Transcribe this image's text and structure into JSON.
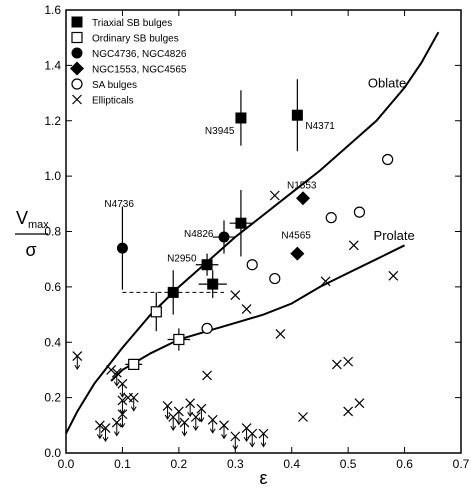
{
  "chart_data": {
    "type": "scatter",
    "xlabel": "ε",
    "ylabel": {
      "main": "V",
      "sub": "max",
      "denominator": "σ"
    },
    "xlim": [
      0,
      0.7
    ],
    "ylim": [
      0,
      1.6
    ],
    "xticks": [
      "0.0",
      "0.1",
      "0.2",
      "0.3",
      "0.4",
      "0.5",
      "0.6",
      "0.7"
    ],
    "yticks": [
      "0.0",
      "0.2",
      "0.4",
      "0.6",
      "0.8",
      "1.0",
      "1.2",
      "1.4",
      "1.6"
    ],
    "grid": false,
    "legend_position": "top-left",
    "legend": [
      {
        "marker": "filled-square",
        "label": "Triaxial SB bulges"
      },
      {
        "marker": "open-square",
        "label": "Ordinary SB bulges"
      },
      {
        "marker": "filled-circle",
        "label": "NGC4736, NGC4826"
      },
      {
        "marker": "filled-diamond",
        "label": "NGC1553, NGC4565"
      },
      {
        "marker": "open-circle",
        "label": "SA bulges"
      },
      {
        "marker": "cross",
        "label": "Ellipticals"
      }
    ],
    "series": [
      {
        "name": "Triaxial SB bulges",
        "marker": "filled-square",
        "points": [
          {
            "x": 0.31,
            "y": 1.21,
            "yerr": 0.1
          },
          {
            "x": 0.41,
            "y": 1.22,
            "yerr": 0.13
          },
          {
            "x": 0.31,
            "y": 0.83,
            "yerr": 0.12,
            "xerr": 0.02
          },
          {
            "x": 0.25,
            "y": 0.68,
            "yerr": 0.04,
            "xerr": 0.02
          },
          {
            "x": 0.26,
            "y": 0.61,
            "yerr": 0.05,
            "xerr": 0.025
          },
          {
            "x": 0.19,
            "y": 0.58,
            "yerr": 0.08,
            "xerr_minus": 0.09,
            "xerr_plus": 0.09,
            "dashed": true
          }
        ]
      },
      {
        "name": "Ordinary SB bulges",
        "marker": "open-square",
        "points": [
          {
            "x": 0.16,
            "y": 0.51,
            "yerr": 0.07
          },
          {
            "x": 0.2,
            "y": 0.41,
            "yerr": 0.04,
            "xerr": 0.02
          },
          {
            "x": 0.12,
            "y": 0.32,
            "yerr": 0.02,
            "xerr": 0.015
          }
        ]
      },
      {
        "name": "NGC4736, NGC4826",
        "marker": "filled-circle",
        "points": [
          {
            "x": 0.1,
            "y": 0.74,
            "yerr": 0.15
          },
          {
            "x": 0.28,
            "y": 0.78,
            "yerr": 0.06,
            "xerr": 0.02
          }
        ]
      },
      {
        "name": "NGC1553, NGC4565",
        "marker": "filled-diamond",
        "points": [
          {
            "x": 0.42,
            "y": 0.92
          },
          {
            "x": 0.41,
            "y": 0.72
          }
        ]
      },
      {
        "name": "SA bulges",
        "marker": "open-circle",
        "points": [
          {
            "x": 0.57,
            "y": 1.06
          },
          {
            "x": 0.52,
            "y": 0.87
          },
          {
            "x": 0.47,
            "y": 0.85
          },
          {
            "x": 0.33,
            "y": 0.68
          },
          {
            "x": 0.37,
            "y": 0.63
          },
          {
            "x": 0.25,
            "y": 0.45
          }
        ]
      },
      {
        "name": "Ellipticals",
        "marker": "cross",
        "points": [
          {
            "x": 0.37,
            "y": 0.93
          },
          {
            "x": 0.51,
            "y": 0.75
          },
          {
            "x": 0.46,
            "y": 0.62
          },
          {
            "x": 0.58,
            "y": 0.64
          },
          {
            "x": 0.3,
            "y": 0.57
          },
          {
            "x": 0.32,
            "y": 0.52
          },
          {
            "x": 0.38,
            "y": 0.43
          },
          {
            "x": 0.48,
            "y": 0.32
          },
          {
            "x": 0.5,
            "y": 0.33
          },
          {
            "x": 0.25,
            "y": 0.28
          },
          {
            "x": 0.08,
            "y": 0.3
          },
          {
            "x": 0.11,
            "y": 0.2
          },
          {
            "x": 0.52,
            "y": 0.18
          },
          {
            "x": 0.5,
            "y": 0.15
          },
          {
            "x": 0.42,
            "y": 0.13
          },
          {
            "x": 0.02,
            "y": 0.35,
            "upper_limit": true
          },
          {
            "x": 0.09,
            "y": 0.29,
            "upper_limit": true
          },
          {
            "x": 0.1,
            "y": 0.25,
            "upper_limit": true
          },
          {
            "x": 0.1,
            "y": 0.19,
            "upper_limit": true
          },
          {
            "x": 0.12,
            "y": 0.2,
            "upper_limit": true
          },
          {
            "x": 0.1,
            "y": 0.14,
            "upper_limit": true
          },
          {
            "x": 0.09,
            "y": 0.11,
            "upper_limit": true
          },
          {
            "x": 0.06,
            "y": 0.1,
            "upper_limit": true
          },
          {
            "x": 0.07,
            "y": 0.09,
            "upper_limit": true
          },
          {
            "x": 0.18,
            "y": 0.17,
            "upper_limit": true
          },
          {
            "x": 0.19,
            "y": 0.13,
            "upper_limit": true
          },
          {
            "x": 0.2,
            "y": 0.15,
            "upper_limit": true
          },
          {
            "x": 0.21,
            "y": 0.11,
            "upper_limit": true
          },
          {
            "x": 0.22,
            "y": 0.18,
            "upper_limit": true
          },
          {
            "x": 0.23,
            "y": 0.13,
            "upper_limit": true
          },
          {
            "x": 0.24,
            "y": 0.16,
            "upper_limit": true
          },
          {
            "x": 0.26,
            "y": 0.12,
            "upper_limit": true
          },
          {
            "x": 0.28,
            "y": 0.1,
            "upper_limit": true
          },
          {
            "x": 0.3,
            "y": 0.06,
            "upper_limit": true
          },
          {
            "x": 0.32,
            "y": 0.09,
            "upper_limit": true
          },
          {
            "x": 0.33,
            "y": 0.07,
            "upper_limit": true
          },
          {
            "x": 0.35,
            "y": 0.07,
            "upper_limit": true
          }
        ]
      }
    ],
    "curves": [
      {
        "name": "Oblate",
        "x": [
          0.0,
          0.02,
          0.05,
          0.1,
          0.15,
          0.2,
          0.25,
          0.3,
          0.35,
          0.4,
          0.45,
          0.5,
          0.55,
          0.6,
          0.63,
          0.66
        ],
        "y": [
          0.07,
          0.15,
          0.25,
          0.38,
          0.5,
          0.6,
          0.69,
          0.78,
          0.86,
          0.94,
          1.02,
          1.11,
          1.2,
          1.32,
          1.41,
          1.52
        ]
      },
      {
        "name": "Prolate",
        "x": [
          0.08,
          0.1,
          0.15,
          0.2,
          0.25,
          0.3,
          0.35,
          0.4,
          0.45,
          0.5,
          0.55,
          0.6
        ],
        "y": [
          0.26,
          0.3,
          0.36,
          0.41,
          0.44,
          0.47,
          0.5,
          0.54,
          0.6,
          0.65,
          0.7,
          0.75
        ]
      }
    ],
    "annotations": [
      {
        "text": "N3945",
        "x": 0.31,
        "y": 1.21
      },
      {
        "text": "N4371",
        "x": 0.41,
        "y": 1.22
      },
      {
        "text": "N4736",
        "x": 0.1,
        "y": 0.74
      },
      {
        "text": "N4826",
        "x": 0.28,
        "y": 0.78
      },
      {
        "text": "N2950",
        "x": 0.25,
        "y": 0.68
      },
      {
        "text": "N1553",
        "x": 0.42,
        "y": 0.92
      },
      {
        "text": "N4565",
        "x": 0.41,
        "y": 0.72
      }
    ]
  }
}
